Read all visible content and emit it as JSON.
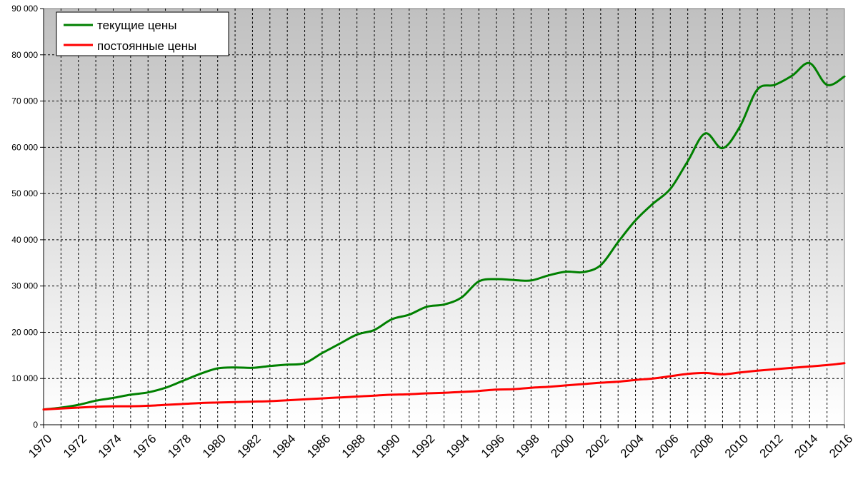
{
  "chart_data": {
    "type": "line",
    "title": "",
    "xlabel": "",
    "ylabel": "",
    "xlim": [
      1970,
      2016
    ],
    "ylim": [
      0,
      90000
    ],
    "grid": true,
    "legend_position": "top-left",
    "y_tick_values": [
      0,
      10000,
      20000,
      30000,
      40000,
      50000,
      60000,
      70000,
      80000,
      90000
    ],
    "y_tick_labels": [
      "0",
      "10 000",
      "20 000",
      "30 000",
      "40 000",
      "50 000",
      "60 000",
      "70 000",
      "80 000",
      "90 000"
    ],
    "x_tick_labels": [
      "1970",
      "1972",
      "1974",
      "1976",
      "1978",
      "1980",
      "1982",
      "1984",
      "1986",
      "1988",
      "1990",
      "1992",
      "1994",
      "1996",
      "1998",
      "2000",
      "2002",
      "2004",
      "2006",
      "2008",
      "2010",
      "2012",
      "2014",
      "2016"
    ],
    "x": [
      1970,
      1971,
      1972,
      1973,
      1974,
      1975,
      1976,
      1977,
      1978,
      1979,
      1980,
      1981,
      1982,
      1983,
      1984,
      1985,
      1986,
      1987,
      1988,
      1989,
      1990,
      1991,
      1992,
      1993,
      1994,
      1995,
      1996,
      1997,
      1998,
      1999,
      2000,
      2001,
      2002,
      2003,
      2004,
      2005,
      2006,
      2007,
      2008,
      2009,
      2010,
      2011,
      2012,
      2013,
      2014,
      2015,
      2016
    ],
    "series": [
      {
        "name": "текущие цены",
        "color": "#008000",
        "values": [
          3300,
          3700,
          4300,
          5200,
          5800,
          6500,
          7000,
          8000,
          9500,
          11000,
          12200,
          12400,
          12300,
          12700,
          13000,
          13300,
          15500,
          17500,
          19500,
          20500,
          22800,
          23800,
          25500,
          26000,
          27500,
          31000,
          31500,
          31300,
          31200,
          32300,
          33100,
          33000,
          34500,
          39500,
          44200,
          47800,
          51000,
          57000,
          63000,
          59800,
          64500,
          72500,
          73500,
          75500,
          78200,
          73500,
          75300
        ],
        "color_name": "green"
      },
      {
        "name": "постоянные цены",
        "color": "#ff0000",
        "values": [
          3300,
          3500,
          3700,
          3900,
          4000,
          4000,
          4100,
          4300,
          4500,
          4700,
          4800,
          4900,
          5000,
          5100,
          5300,
          5500,
          5700,
          5900,
          6100,
          6300,
          6500,
          6600,
          6800,
          6900,
          7100,
          7300,
          7600,
          7700,
          8000,
          8200,
          8500,
          8800,
          9100,
          9300,
          9700,
          10000,
          10500,
          11000,
          11200,
          10900,
          11300,
          11700,
          12000,
          12300,
          12600,
          12900,
          13300
        ],
        "color_name": "red"
      }
    ]
  }
}
